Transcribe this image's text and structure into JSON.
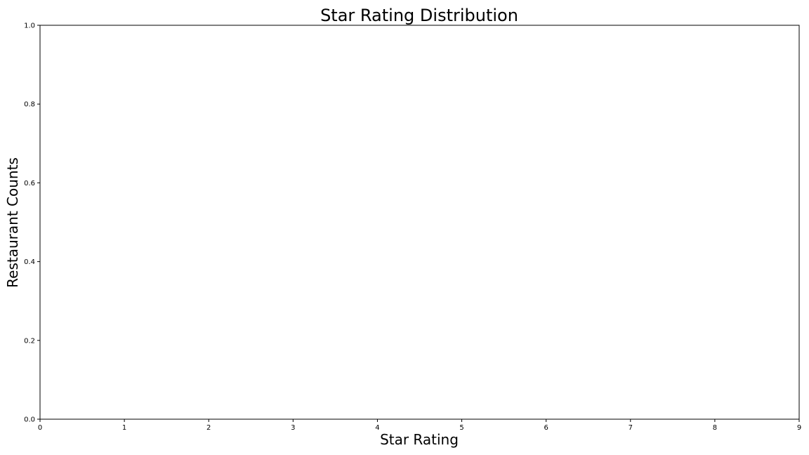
{
  "chart_data": {
    "type": "bar",
    "title": "Star Rating Distribution",
    "xlabel": "Star Rating",
    "ylabel": "Restaurant Counts",
    "xlim": [
      0,
      9
    ],
    "ylim": [
      0,
      1
    ],
    "x_ticks": [
      "0",
      "1",
      "2",
      "3",
      "4",
      "5",
      "6",
      "7",
      "8",
      "9"
    ],
    "y_ticks": [
      "0.0",
      "0.2",
      "0.4",
      "0.6",
      "0.8",
      "1.0"
    ],
    "categories": [],
    "values": [],
    "grid": false
  }
}
